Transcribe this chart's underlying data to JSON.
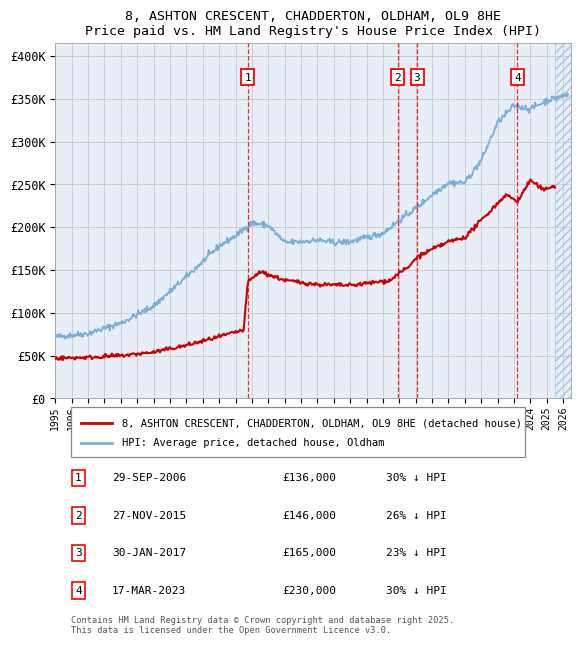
{
  "title1": "8, ASHTON CRESCENT, CHADDERTON, OLDHAM, OL9 8HE",
  "title2": "Price paid vs. HM Land Registry's House Price Index (HPI)",
  "ylabel_values": [
    "£0",
    "£50K",
    "£100K",
    "£150K",
    "£200K",
    "£250K",
    "£300K",
    "£350K",
    "£400K"
  ],
  "y_ticks": [
    0,
    50000,
    100000,
    150000,
    200000,
    250000,
    300000,
    350000,
    400000
  ],
  "ylim": [
    0,
    415000
  ],
  "xlim_start": 1995.0,
  "xlim_end": 2026.5,
  "sale_color": "#cc0000",
  "hpi_color": "#7bafd4",
  "background_color": "#e8eef8",
  "grid_color": "#c8c8c8",
  "transactions": [
    {
      "num": 1,
      "date": "29-SEP-2006",
      "price": 136000,
      "pct": "30%",
      "x": 2006.75
    },
    {
      "num": 2,
      "date": "27-NOV-2015",
      "price": 146000,
      "pct": "26%",
      "x": 2015.9
    },
    {
      "num": 3,
      "date": "30-JAN-2017",
      "price": 165000,
      "pct": "23%",
      "x": 2017.08
    },
    {
      "num": 4,
      "date": "17-MAR-2023",
      "price": 230000,
      "pct": "30%",
      "x": 2023.21
    }
  ],
  "legend_sale_label": "8, ASHTON CRESCENT, CHADDERTON, OLDHAM, OL9 8HE (detached house)",
  "legend_hpi_label": "HPI: Average price, detached house, Oldham",
  "footer": "Contains HM Land Registry data © Crown copyright and database right 2025.\nThis data is licensed under the Open Government Licence v3.0."
}
